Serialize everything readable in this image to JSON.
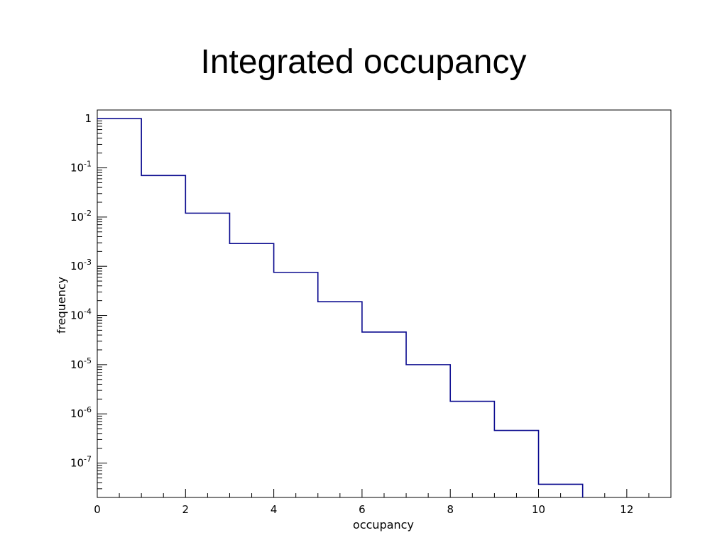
{
  "slide": {
    "title": "Integrated occupancy"
  },
  "chart_data": {
    "type": "line",
    "style": "step-histogram",
    "xlabel": "occupancy",
    "ylabel": "frequency",
    "xlim": [
      0,
      13
    ],
    "ylim": [
      2e-08,
      1.5
    ],
    "yscale": "log",
    "grid": false,
    "line_color": "#0b0b8f",
    "x_ticks": [
      0,
      2,
      4,
      6,
      8,
      10,
      12
    ],
    "x_tick_labels": [
      "0",
      "2",
      "4",
      "6",
      "8",
      "10",
      "12"
    ],
    "y_tick_labels": [
      {
        "value": 1,
        "base": "1",
        "exp": ""
      },
      {
        "value": 0.1,
        "base": "10",
        "exp": "-1"
      },
      {
        "value": 0.01,
        "base": "10",
        "exp": "-2"
      },
      {
        "value": 0.001,
        "base": "10",
        "exp": "-3"
      },
      {
        "value": 0.0001,
        "base": "10",
        "exp": "-4"
      },
      {
        "value": 1e-05,
        "base": "10",
        "exp": "-5"
      },
      {
        "value": 1e-06,
        "base": "10",
        "exp": "-6"
      },
      {
        "value": 1e-07,
        "base": "10",
        "exp": "-7"
      }
    ],
    "bins": [
      {
        "x0": 0,
        "x1": 1,
        "y": 1.0
      },
      {
        "x0": 1,
        "x1": 2,
        "y": 0.07
      },
      {
        "x0": 2,
        "x1": 3,
        "y": 0.012
      },
      {
        "x0": 3,
        "x1": 4,
        "y": 0.0029
      },
      {
        "x0": 4,
        "x1": 5,
        "y": 0.00075
      },
      {
        "x0": 5,
        "x1": 6,
        "y": 0.00019
      },
      {
        "x0": 6,
        "x1": 7,
        "y": 4.6e-05
      },
      {
        "x0": 7,
        "x1": 8,
        "y": 1e-05
      },
      {
        "x0": 8,
        "x1": 9,
        "y": 1.8e-06
      },
      {
        "x0": 9,
        "x1": 10,
        "y": 4.6e-07
      },
      {
        "x0": 10,
        "x1": 11,
        "y": 3.7e-08
      }
    ]
  }
}
